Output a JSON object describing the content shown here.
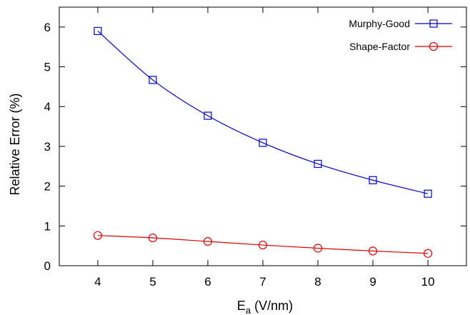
{
  "chart_data": {
    "type": "line",
    "title": "",
    "xlabel": {
      "main": "E",
      "sub": "a",
      "rest": " (V/nm)"
    },
    "ylabel": "Relative Error (%)",
    "x": [
      4,
      5,
      6,
      7,
      8,
      9,
      10
    ],
    "xlim": [
      3.3,
      10.7
    ],
    "ylim": [
      0,
      6.5
    ],
    "xticks": [
      "4",
      "5",
      "6",
      "7",
      "8",
      "9",
      "10"
    ],
    "yticks": [
      "0",
      "1",
      "2",
      "3",
      "4",
      "5",
      "6"
    ],
    "grid": false,
    "legend_position": "top-right",
    "series": [
      {
        "name": "Murphy-Good",
        "color": "#0000cc",
        "marker": "square",
        "values": [
          5.9,
          4.67,
          3.77,
          3.09,
          2.56,
          2.15,
          1.81
        ]
      },
      {
        "name": "Shape-Factor",
        "color": "#dd0000",
        "marker": "circle",
        "values": [
          0.76,
          0.7,
          0.61,
          0.52,
          0.44,
          0.37,
          0.31
        ]
      }
    ]
  }
}
